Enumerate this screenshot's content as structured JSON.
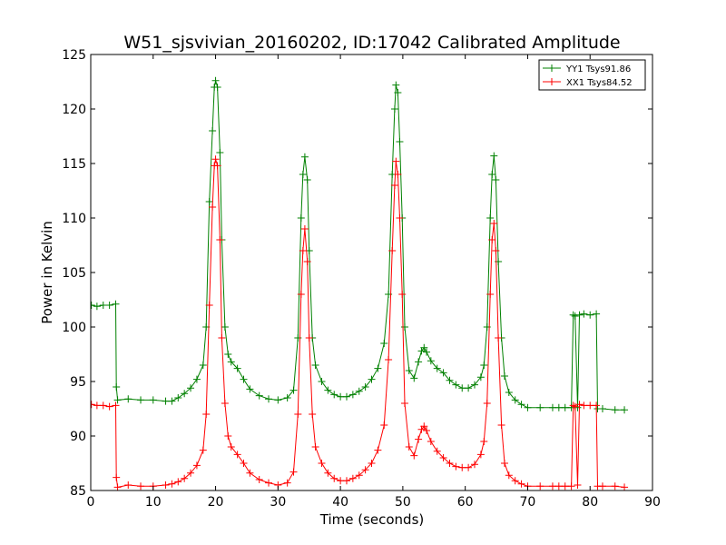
{
  "chart_data": {
    "type": "line",
    "title": "W51_sjsvivian_20160202, ID:17042 Calibrated Amplitude",
    "xlabel": "Time (seconds)",
    "ylabel": "Power in Kelvin",
    "xlim": [
      0,
      90
    ],
    "ylim": [
      85,
      125
    ],
    "xticks": [
      "0",
      "10",
      "20",
      "30",
      "40",
      "50",
      "60",
      "70",
      "80",
      "90"
    ],
    "yticks": [
      "85",
      "90",
      "95",
      "100",
      "105",
      "110",
      "115",
      "120",
      "125"
    ],
    "grid": false,
    "legend_position": "top-right",
    "series": [
      {
        "name": "YY1 Tsys91.86",
        "color": "#008000",
        "marker": "+",
        "points": [
          [
            0.1,
            102.0
          ],
          [
            1,
            101.9
          ],
          [
            2,
            102.0
          ],
          [
            3,
            102.0
          ],
          [
            4.0,
            102.1
          ],
          [
            4.1,
            94.5
          ],
          [
            4.3,
            93.3
          ],
          [
            6,
            93.4
          ],
          [
            8,
            93.3
          ],
          [
            10,
            93.3
          ],
          [
            12,
            93.2
          ],
          [
            13,
            93.2
          ],
          [
            14,
            93.5
          ],
          [
            15,
            93.9
          ],
          [
            16,
            94.4
          ],
          [
            17,
            95.2
          ],
          [
            18,
            96.5
          ],
          [
            18.5,
            100.0
          ],
          [
            19.0,
            111.5
          ],
          [
            19.5,
            118.0
          ],
          [
            19.8,
            122.0
          ],
          [
            20.0,
            122.6
          ],
          [
            20.3,
            122.0
          ],
          [
            20.7,
            116.0
          ],
          [
            21.0,
            108.0
          ],
          [
            21.5,
            100.0
          ],
          [
            22.0,
            97.5
          ],
          [
            22.5,
            96.8
          ],
          [
            23.5,
            96.2
          ],
          [
            24.5,
            95.2
          ],
          [
            25.5,
            94.3
          ],
          [
            27,
            93.7
          ],
          [
            28.5,
            93.4
          ],
          [
            30,
            93.3
          ],
          [
            31.5,
            93.5
          ],
          [
            32.5,
            94.2
          ],
          [
            33.2,
            99.0
          ],
          [
            33.7,
            110.0
          ],
          [
            34.0,
            114.0
          ],
          [
            34.3,
            115.6
          ],
          [
            34.7,
            113.5
          ],
          [
            35.0,
            107.0
          ],
          [
            35.5,
            99.0
          ],
          [
            36,
            96.5
          ],
          [
            37,
            95.0
          ],
          [
            38,
            94.2
          ],
          [
            39,
            93.8
          ],
          [
            40,
            93.6
          ],
          [
            41,
            93.6
          ],
          [
            42,
            93.8
          ],
          [
            43,
            94.1
          ],
          [
            44,
            94.5
          ],
          [
            45,
            95.2
          ],
          [
            46,
            96.2
          ],
          [
            47,
            98.5
          ],
          [
            47.7,
            103.0
          ],
          [
            48.3,
            114.0
          ],
          [
            48.7,
            120.0
          ],
          [
            48.9,
            122.2
          ],
          [
            49.2,
            121.5
          ],
          [
            49.5,
            117.0
          ],
          [
            49.9,
            110.0
          ],
          [
            50.3,
            100.0
          ],
          [
            51,
            96.0
          ],
          [
            51.8,
            95.3
          ],
          [
            52.5,
            96.8
          ],
          [
            53.0,
            97.8
          ],
          [
            53.4,
            98.1
          ],
          [
            53.8,
            97.7
          ],
          [
            54.5,
            96.9
          ],
          [
            55.5,
            96.2
          ],
          [
            56.5,
            95.8
          ],
          [
            57.5,
            95.1
          ],
          [
            58.5,
            94.7
          ],
          [
            59.5,
            94.4
          ],
          [
            60.5,
            94.4
          ],
          [
            61.5,
            94.7
          ],
          [
            62.5,
            95.4
          ],
          [
            63.0,
            96.5
          ],
          [
            63.5,
            100.0
          ],
          [
            64.0,
            110.0
          ],
          [
            64.3,
            114.0
          ],
          [
            64.6,
            115.7
          ],
          [
            64.9,
            113.5
          ],
          [
            65.3,
            106.0
          ],
          [
            65.8,
            99.0
          ],
          [
            66.3,
            95.5
          ],
          [
            67,
            94.0
          ],
          [
            68,
            93.3
          ],
          [
            69,
            92.9
          ],
          [
            70,
            92.6
          ],
          [
            72,
            92.6
          ],
          [
            74,
            92.6
          ],
          [
            75,
            92.6
          ],
          [
            76,
            92.6
          ],
          [
            77.0,
            92.6
          ],
          [
            77.3,
            101.1
          ],
          [
            77.6,
            101.0
          ],
          [
            78.0,
            92.6
          ],
          [
            78.3,
            101.1
          ],
          [
            79,
            101.2
          ],
          [
            80,
            101.1
          ],
          [
            81.0,
            101.2
          ],
          [
            81.2,
            92.5
          ],
          [
            82,
            92.5
          ],
          [
            84,
            92.4
          ],
          [
            85.5,
            92.4
          ]
        ]
      },
      {
        "name": "XX1 Tsys84.52",
        "color": "#ff0000",
        "marker": "+",
        "points": [
          [
            0.1,
            92.9
          ],
          [
            1,
            92.8
          ],
          [
            2,
            92.8
          ],
          [
            3,
            92.7
          ],
          [
            4.0,
            92.8
          ],
          [
            4.1,
            86.2
          ],
          [
            4.3,
            85.3
          ],
          [
            6,
            85.5
          ],
          [
            8,
            85.4
          ],
          [
            10,
            85.4
          ],
          [
            12,
            85.5
          ],
          [
            13,
            85.6
          ],
          [
            14,
            85.8
          ],
          [
            15,
            86.1
          ],
          [
            16,
            86.6
          ],
          [
            17,
            87.3
          ],
          [
            18,
            88.7
          ],
          [
            18.5,
            92.0
          ],
          [
            19.0,
            102.0
          ],
          [
            19.5,
            111.0
          ],
          [
            19.8,
            114.8
          ],
          [
            20.0,
            115.4
          ],
          [
            20.3,
            114.8
          ],
          [
            20.7,
            108.0
          ],
          [
            21.0,
            99.0
          ],
          [
            21.5,
            93.0
          ],
          [
            22.0,
            90.0
          ],
          [
            22.5,
            89.0
          ],
          [
            23.5,
            88.3
          ],
          [
            24.5,
            87.5
          ],
          [
            25.5,
            86.6
          ],
          [
            27,
            86.0
          ],
          [
            28.5,
            85.7
          ],
          [
            30,
            85.5
          ],
          [
            31.5,
            85.7
          ],
          [
            32.5,
            86.7
          ],
          [
            33.2,
            92.0
          ],
          [
            33.7,
            103.0
          ],
          [
            34.0,
            107.0
          ],
          [
            34.3,
            109.0
          ],
          [
            34.7,
            106.0
          ],
          [
            35.0,
            99.0
          ],
          [
            35.5,
            92.0
          ],
          [
            36,
            89.0
          ],
          [
            37,
            87.5
          ],
          [
            38,
            86.6
          ],
          [
            39,
            86.1
          ],
          [
            40,
            85.9
          ],
          [
            41,
            85.9
          ],
          [
            42,
            86.1
          ],
          [
            43,
            86.4
          ],
          [
            44,
            86.9
          ],
          [
            45,
            87.5
          ],
          [
            46,
            88.7
          ],
          [
            47,
            91.0
          ],
          [
            47.7,
            97.0
          ],
          [
            48.3,
            107.0
          ],
          [
            48.7,
            113.0
          ],
          [
            48.9,
            115.2
          ],
          [
            49.2,
            114.0
          ],
          [
            49.5,
            110.0
          ],
          [
            49.9,
            103.0
          ],
          [
            50.3,
            93.0
          ],
          [
            51,
            89.0
          ],
          [
            51.8,
            88.2
          ],
          [
            52.5,
            89.7
          ],
          [
            53.0,
            90.6
          ],
          [
            53.4,
            90.9
          ],
          [
            53.8,
            90.5
          ],
          [
            54.5,
            89.5
          ],
          [
            55.5,
            88.6
          ],
          [
            56.5,
            88.0
          ],
          [
            57.5,
            87.5
          ],
          [
            58.5,
            87.2
          ],
          [
            59.5,
            87.1
          ],
          [
            60.5,
            87.1
          ],
          [
            61.5,
            87.4
          ],
          [
            62.5,
            88.3
          ],
          [
            63.0,
            89.5
          ],
          [
            63.5,
            93.0
          ],
          [
            64.0,
            103.0
          ],
          [
            64.3,
            108.0
          ],
          [
            64.6,
            109.5
          ],
          [
            64.9,
            107.0
          ],
          [
            65.3,
            99.0
          ],
          [
            65.8,
            91.0
          ],
          [
            66.3,
            87.5
          ],
          [
            67,
            86.4
          ],
          [
            68,
            85.9
          ],
          [
            69,
            85.6
          ],
          [
            70,
            85.4
          ],
          [
            72,
            85.4
          ],
          [
            74,
            85.4
          ],
          [
            75,
            85.4
          ],
          [
            76,
            85.4
          ],
          [
            77.0,
            85.4
          ],
          [
            77.3,
            92.8
          ],
          [
            77.6,
            92.7
          ],
          [
            78.0,
            85.5
          ],
          [
            78.3,
            92.9
          ],
          [
            79,
            92.8
          ],
          [
            80,
            92.8
          ],
          [
            81.0,
            92.8
          ],
          [
            81.2,
            85.4
          ],
          [
            82,
            85.4
          ],
          [
            84,
            85.4
          ],
          [
            85.5,
            85.3
          ]
        ]
      }
    ]
  }
}
